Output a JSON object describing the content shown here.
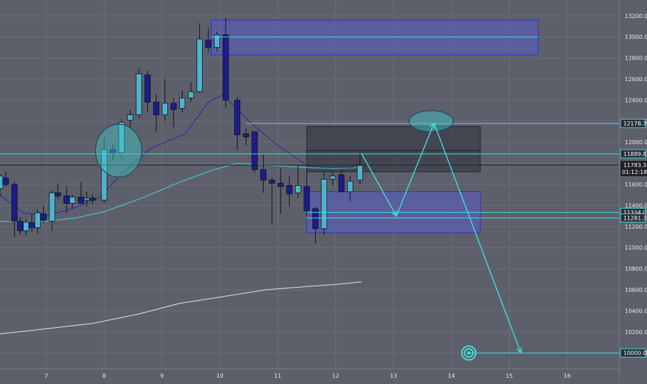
{
  "chart_data": {
    "type": "candlestick",
    "colors": {
      "background": "#5d606b",
      "grid": "#6b6e79",
      "bull": "#4fb3cf",
      "bear": "#1c1c8c",
      "wick": "#111111",
      "zone_fill": "#5a5cc4",
      "zone_border": "#2b2bd6",
      "dark_box": "#3b3e48",
      "level_line": "#3fe0e0",
      "path": "#3fe0e0",
      "ma_fast": "#3a2a9a",
      "ma_mid": "#3fc9c9",
      "ma_slow": "#e6e6e6",
      "axis_text": "#e8e8e8",
      "tag_bg": "#2a2d36"
    },
    "x_ticks": [
      "7",
      "8",
      "9",
      "10",
      "11",
      "12",
      "13",
      "14",
      "15",
      "16"
    ],
    "y_ticks": [
      13200,
      13000,
      12800,
      12600,
      12400,
      12200,
      12000,
      11800,
      11600,
      11400,
      11200,
      11000,
      10800,
      10600,
      10400,
      10200,
      10000
    ],
    "ylim": [
      9850,
      13350
    ],
    "xlim": [
      6.2,
      16.9
    ],
    "price_tags": [
      {
        "value": 12178.3,
        "label": "12178.3"
      },
      {
        "value": 11889.8,
        "label": "11889.8"
      },
      {
        "value": 11334.0,
        "label": "11334.0"
      },
      {
        "value": 11281.3,
        "label": "11281.3"
      },
      {
        "value": 10000.0,
        "label": "10000.0"
      }
    ],
    "current_price": {
      "value": 11783.3,
      "label": "11783.3",
      "countdown": "01:12:18"
    },
    "candles": [
      {
        "x": 6.2,
        "o": 11560,
        "h": 11700,
        "l": 11480,
        "c": 11680
      },
      {
        "x": 6.3,
        "o": 11660,
        "h": 11720,
        "l": 11580,
        "c": 11600
      },
      {
        "x": 6.45,
        "o": 11600,
        "h": 11620,
        "l": 11100,
        "c": 11250
      },
      {
        "x": 6.55,
        "o": 11250,
        "h": 11290,
        "l": 11120,
        "c": 11160
      },
      {
        "x": 6.65,
        "o": 11160,
        "h": 11270,
        "l": 11120,
        "c": 11240
      },
      {
        "x": 6.75,
        "o": 11240,
        "h": 11320,
        "l": 11150,
        "c": 11190
      },
      {
        "x": 6.85,
        "o": 11190,
        "h": 11360,
        "l": 11130,
        "c": 11330
      },
      {
        "x": 6.95,
        "o": 11320,
        "h": 11400,
        "l": 11240,
        "c": 11260
      },
      {
        "x": 7.1,
        "o": 11250,
        "h": 11540,
        "l": 11160,
        "c": 11520
      },
      {
        "x": 7.2,
        "o": 11520,
        "h": 11610,
        "l": 11460,
        "c": 11490
      },
      {
        "x": 7.35,
        "o": 11490,
        "h": 11580,
        "l": 11330,
        "c": 11420
      },
      {
        "x": 7.45,
        "o": 11420,
        "h": 11500,
        "l": 11370,
        "c": 11480
      },
      {
        "x": 7.6,
        "o": 11480,
        "h": 11620,
        "l": 11420,
        "c": 11420
      },
      {
        "x": 7.7,
        "o": 11450,
        "h": 11530,
        "l": 11390,
        "c": 11470
      },
      {
        "x": 7.8,
        "o": 11470,
        "h": 11500,
        "l": 11410,
        "c": 11450
      },
      {
        "x": 8.0,
        "o": 11450,
        "h": 12050,
        "l": 11420,
        "c": 11930
      },
      {
        "x": 8.15,
        "o": 11930,
        "h": 11980,
        "l": 11830,
        "c": 11890
      },
      {
        "x": 8.3,
        "o": 11900,
        "h": 12220,
        "l": 11840,
        "c": 12190
      },
      {
        "x": 8.45,
        "o": 12210,
        "h": 12310,
        "l": 12140,
        "c": 12260
      },
      {
        "x": 8.6,
        "o": 12260,
        "h": 12700,
        "l": 12230,
        "c": 12650
      },
      {
        "x": 8.75,
        "o": 12640,
        "h": 12680,
        "l": 12290,
        "c": 12380
      },
      {
        "x": 8.9,
        "o": 12380,
        "h": 12460,
        "l": 12100,
        "c": 12260
      },
      {
        "x": 9.05,
        "o": 12260,
        "h": 12600,
        "l": 12200,
        "c": 12370
      },
      {
        "x": 9.2,
        "o": 12370,
        "h": 12420,
        "l": 12140,
        "c": 12310
      },
      {
        "x": 9.35,
        "o": 12320,
        "h": 12490,
        "l": 12280,
        "c": 12420
      },
      {
        "x": 9.5,
        "o": 12420,
        "h": 12570,
        "l": 12380,
        "c": 12480
      },
      {
        "x": 9.65,
        "o": 12480,
        "h": 13130,
        "l": 12470,
        "c": 12980
      },
      {
        "x": 9.8,
        "o": 12970,
        "h": 13080,
        "l": 12860,
        "c": 12900
      },
      {
        "x": 9.95,
        "o": 12900,
        "h": 13050,
        "l": 12860,
        "c": 13020
      },
      {
        "x": 10.1,
        "o": 13020,
        "h": 13180,
        "l": 12330,
        "c": 12400
      },
      {
        "x": 10.3,
        "o": 12400,
        "h": 12430,
        "l": 11930,
        "c": 12070
      },
      {
        "x": 10.45,
        "o": 12080,
        "h": 12130,
        "l": 11970,
        "c": 12050
      },
      {
        "x": 10.6,
        "o": 12100,
        "h": 12100,
        "l": 11710,
        "c": 11740
      },
      {
        "x": 10.75,
        "o": 11740,
        "h": 11880,
        "l": 11520,
        "c": 11640
      },
      {
        "x": 10.9,
        "o": 11640,
        "h": 11660,
        "l": 11220,
        "c": 11610
      },
      {
        "x": 11.05,
        "o": 11610,
        "h": 11750,
        "l": 11320,
        "c": 11580
      },
      {
        "x": 11.2,
        "o": 11590,
        "h": 11680,
        "l": 11390,
        "c": 11510
      },
      {
        "x": 11.35,
        "o": 11520,
        "h": 11780,
        "l": 11470,
        "c": 11590
      },
      {
        "x": 11.5,
        "o": 11580,
        "h": 11740,
        "l": 11300,
        "c": 11350
      },
      {
        "x": 11.65,
        "o": 11370,
        "h": 11390,
        "l": 11040,
        "c": 11180
      },
      {
        "x": 11.8,
        "o": 11180,
        "h": 11720,
        "l": 11120,
        "c": 11650
      },
      {
        "x": 11.95,
        "o": 11650,
        "h": 11720,
        "l": 11590,
        "c": 11680
      },
      {
        "x": 12.1,
        "o": 11690,
        "h": 11740,
        "l": 11520,
        "c": 11530
      },
      {
        "x": 12.25,
        "o": 11530,
        "h": 11680,
        "l": 11440,
        "c": 11630
      },
      {
        "x": 12.42,
        "o": 11640,
        "h": 11900,
        "l": 11600,
        "c": 11780
      }
    ],
    "ma_fast": [
      [
        6.2,
        11500
      ],
      [
        6.6,
        11330
      ],
      [
        7.0,
        11300
      ],
      [
        7.5,
        11380
      ],
      [
        7.9,
        11470
      ],
      [
        8.3,
        11700
      ],
      [
        8.8,
        11940
      ],
      [
        9.4,
        12080
      ],
      [
        9.8,
        12380
      ],
      [
        10.05,
        12450
      ],
      [
        10.5,
        12200
      ],
      [
        11.0,
        11970
      ],
      [
        11.5,
        11780
      ],
      [
        11.8,
        11760
      ],
      [
        12.3,
        11760
      ]
    ],
    "ma_mid": [
      [
        6.2,
        11250
      ],
      [
        6.8,
        11240
      ],
      [
        7.5,
        11280
      ],
      [
        8.0,
        11340
      ],
      [
        8.7,
        11480
      ],
      [
        9.3,
        11620
      ],
      [
        9.9,
        11740
      ],
      [
        10.3,
        11800
      ],
      [
        10.9,
        11780
      ],
      [
        11.5,
        11760
      ],
      [
        12.0,
        11750
      ],
      [
        12.4,
        11760
      ]
    ],
    "ma_slow": [
      [
        6.2,
        10180
      ],
      [
        7.0,
        10230
      ],
      [
        7.8,
        10280
      ],
      [
        8.6,
        10370
      ],
      [
        9.3,
        10470
      ],
      [
        10.0,
        10530
      ],
      [
        10.8,
        10600
      ],
      [
        11.5,
        10630
      ],
      [
        12.0,
        10650
      ],
      [
        12.45,
        10675
      ]
    ],
    "zones": [
      {
        "type": "supply",
        "x0": 9.85,
        "x1": 15.5,
        "top": 13160,
        "bottom": 12830
      },
      {
        "type": "demand",
        "x0": 11.5,
        "x1": 14.5,
        "top": 11530,
        "bottom": 11140
      }
    ],
    "dark_boxes": [
      {
        "x0": 11.5,
        "x1": 14.5,
        "top": 12150,
        "bottom": 11920
      },
      {
        "x0": 11.5,
        "x1": 14.5,
        "top": 11920,
        "bottom": 11720
      }
    ],
    "levels": [
      {
        "value": 12178.3,
        "x0": 10.45,
        "x1": 16.9
      },
      {
        "value": 11889.8,
        "x0": 6.2,
        "x1": 16.9
      },
      {
        "value": 11334.0,
        "x0": 11.5,
        "x1": 16.9
      },
      {
        "value": 11281.3,
        "x0": 11.5,
        "x1": 16.9
      },
      {
        "value": 10000.0,
        "x0": 14.3,
        "x1": 16.9
      },
      {
        "value": 13000.0,
        "x0": 9.85,
        "x1": 15.5
      }
    ],
    "projection": [
      [
        12.45,
        11890
      ],
      [
        13.05,
        11300
      ],
      [
        13.7,
        12180
      ],
      [
        15.2,
        10000
      ]
    ],
    "ellipses": [
      {
        "x": 8.25,
        "y": 11920,
        "rx_days": 0.4,
        "ry_value": 250
      },
      {
        "x": 13.65,
        "y": 12200,
        "rx_days": 0.38,
        "ry_value": 100
      }
    ],
    "target_marker": {
      "x": 14.3,
      "y": 10000
    }
  }
}
